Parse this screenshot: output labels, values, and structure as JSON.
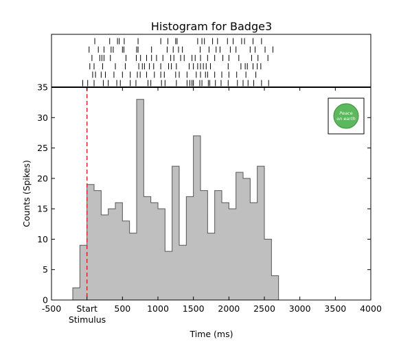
{
  "chart_data": {
    "type": "bar",
    "title": "Histogram for Badge3",
    "xlabel": "Time (ms)",
    "ylabel": "Counts (Spikes)",
    "xlim": [
      -500,
      4000
    ],
    "ylim": [
      0,
      35
    ],
    "x_ticks": [
      {
        "value": -500,
        "label": "-500"
      },
      {
        "value": 0,
        "label": "Start"
      },
      {
        "value": 500,
        "label": "500"
      },
      {
        "value": 1000,
        "label": "1000"
      },
      {
        "value": 1500,
        "label": "1500"
      },
      {
        "value": 2000,
        "label": "2000"
      },
      {
        "value": 2500,
        "label": "2500"
      },
      {
        "value": 3000,
        "label": "3000"
      },
      {
        "value": 3500,
        "label": "3500"
      },
      {
        "value": 4000,
        "label": "4000"
      }
    ],
    "y_ticks": [
      0,
      5,
      10,
      15,
      20,
      25,
      30,
      35
    ],
    "stimulus": {
      "time": 0,
      "label": "Stimulus",
      "color": "#d62728",
      "style": "dashed"
    },
    "bin_width": 100,
    "bin_starts": [
      -200,
      -100,
      0,
      100,
      200,
      300,
      400,
      500,
      600,
      700,
      800,
      900,
      1000,
      1100,
      1200,
      1300,
      1400,
      1500,
      1600,
      1700,
      1800,
      1900,
      2000,
      2100,
      2200,
      2300,
      2400,
      2500,
      2600
    ],
    "values": [
      2,
      9,
      19,
      18,
      14,
      15,
      16,
      13,
      11,
      33,
      17,
      16,
      15,
      8,
      22,
      9,
      17,
      27,
      18,
      11,
      18,
      16,
      15,
      21,
      20,
      16,
      22,
      10,
      4
    ],
    "bar_fill": "#bfbfbf",
    "bar_edge": "#555555",
    "raster": [
      [
        110,
        320,
        430,
        455,
        525,
        720,
        1040,
        1140,
        1250,
        1270,
        1560,
        1620,
        1655,
        1770,
        1840,
        1980,
        2060,
        2180,
        2220,
        2340,
        2460
      ],
      [
        30,
        160,
        240,
        340,
        370,
        500,
        520,
        700,
        720,
        910,
        1130,
        1215,
        1290,
        1345,
        1595,
        1720,
        1820,
        1875,
        2020,
        2100,
        2300,
        2370,
        2510,
        2620
      ],
      [
        70,
        180,
        210,
        240,
        330,
        550,
        695,
        755,
        840,
        910,
        980,
        1070,
        1180,
        1225,
        1320,
        1370,
        1480,
        1525,
        1600,
        1700,
        1800,
        1915,
        2000,
        2140,
        2320,
        2410,
        2550
      ],
      [
        40,
        100,
        220,
        400,
        540,
        730,
        780,
        810,
        880,
        940,
        1040,
        1150,
        1190,
        1260,
        1440,
        1500,
        1560,
        1600,
        1640,
        1680,
        1740,
        1990,
        2170,
        2230,
        2260,
        2340,
        2400,
        2450
      ],
      [
        80,
        120,
        200,
        260,
        380,
        500,
        610,
        710,
        750,
        840,
        950,
        1040,
        1090,
        1250,
        1300,
        1410,
        1540,
        1600,
        1670,
        1700,
        1800,
        1900,
        2000,
        2110,
        2240,
        2380
      ],
      [
        -60,
        10,
        100,
        230,
        300,
        420,
        470,
        610,
        690,
        860,
        900,
        1050,
        1100,
        1260,
        1410,
        1450,
        1480,
        1500,
        1590,
        1620,
        1710,
        1730,
        1810,
        1890,
        1990,
        2120,
        2200,
        2270,
        2350,
        2460,
        2560
      ]
    ],
    "inset_logo": {
      "text_lines": [
        "Peace",
        "on earth"
      ],
      "color": "#5cb85c"
    },
    "grid": false,
    "legend": "none"
  }
}
